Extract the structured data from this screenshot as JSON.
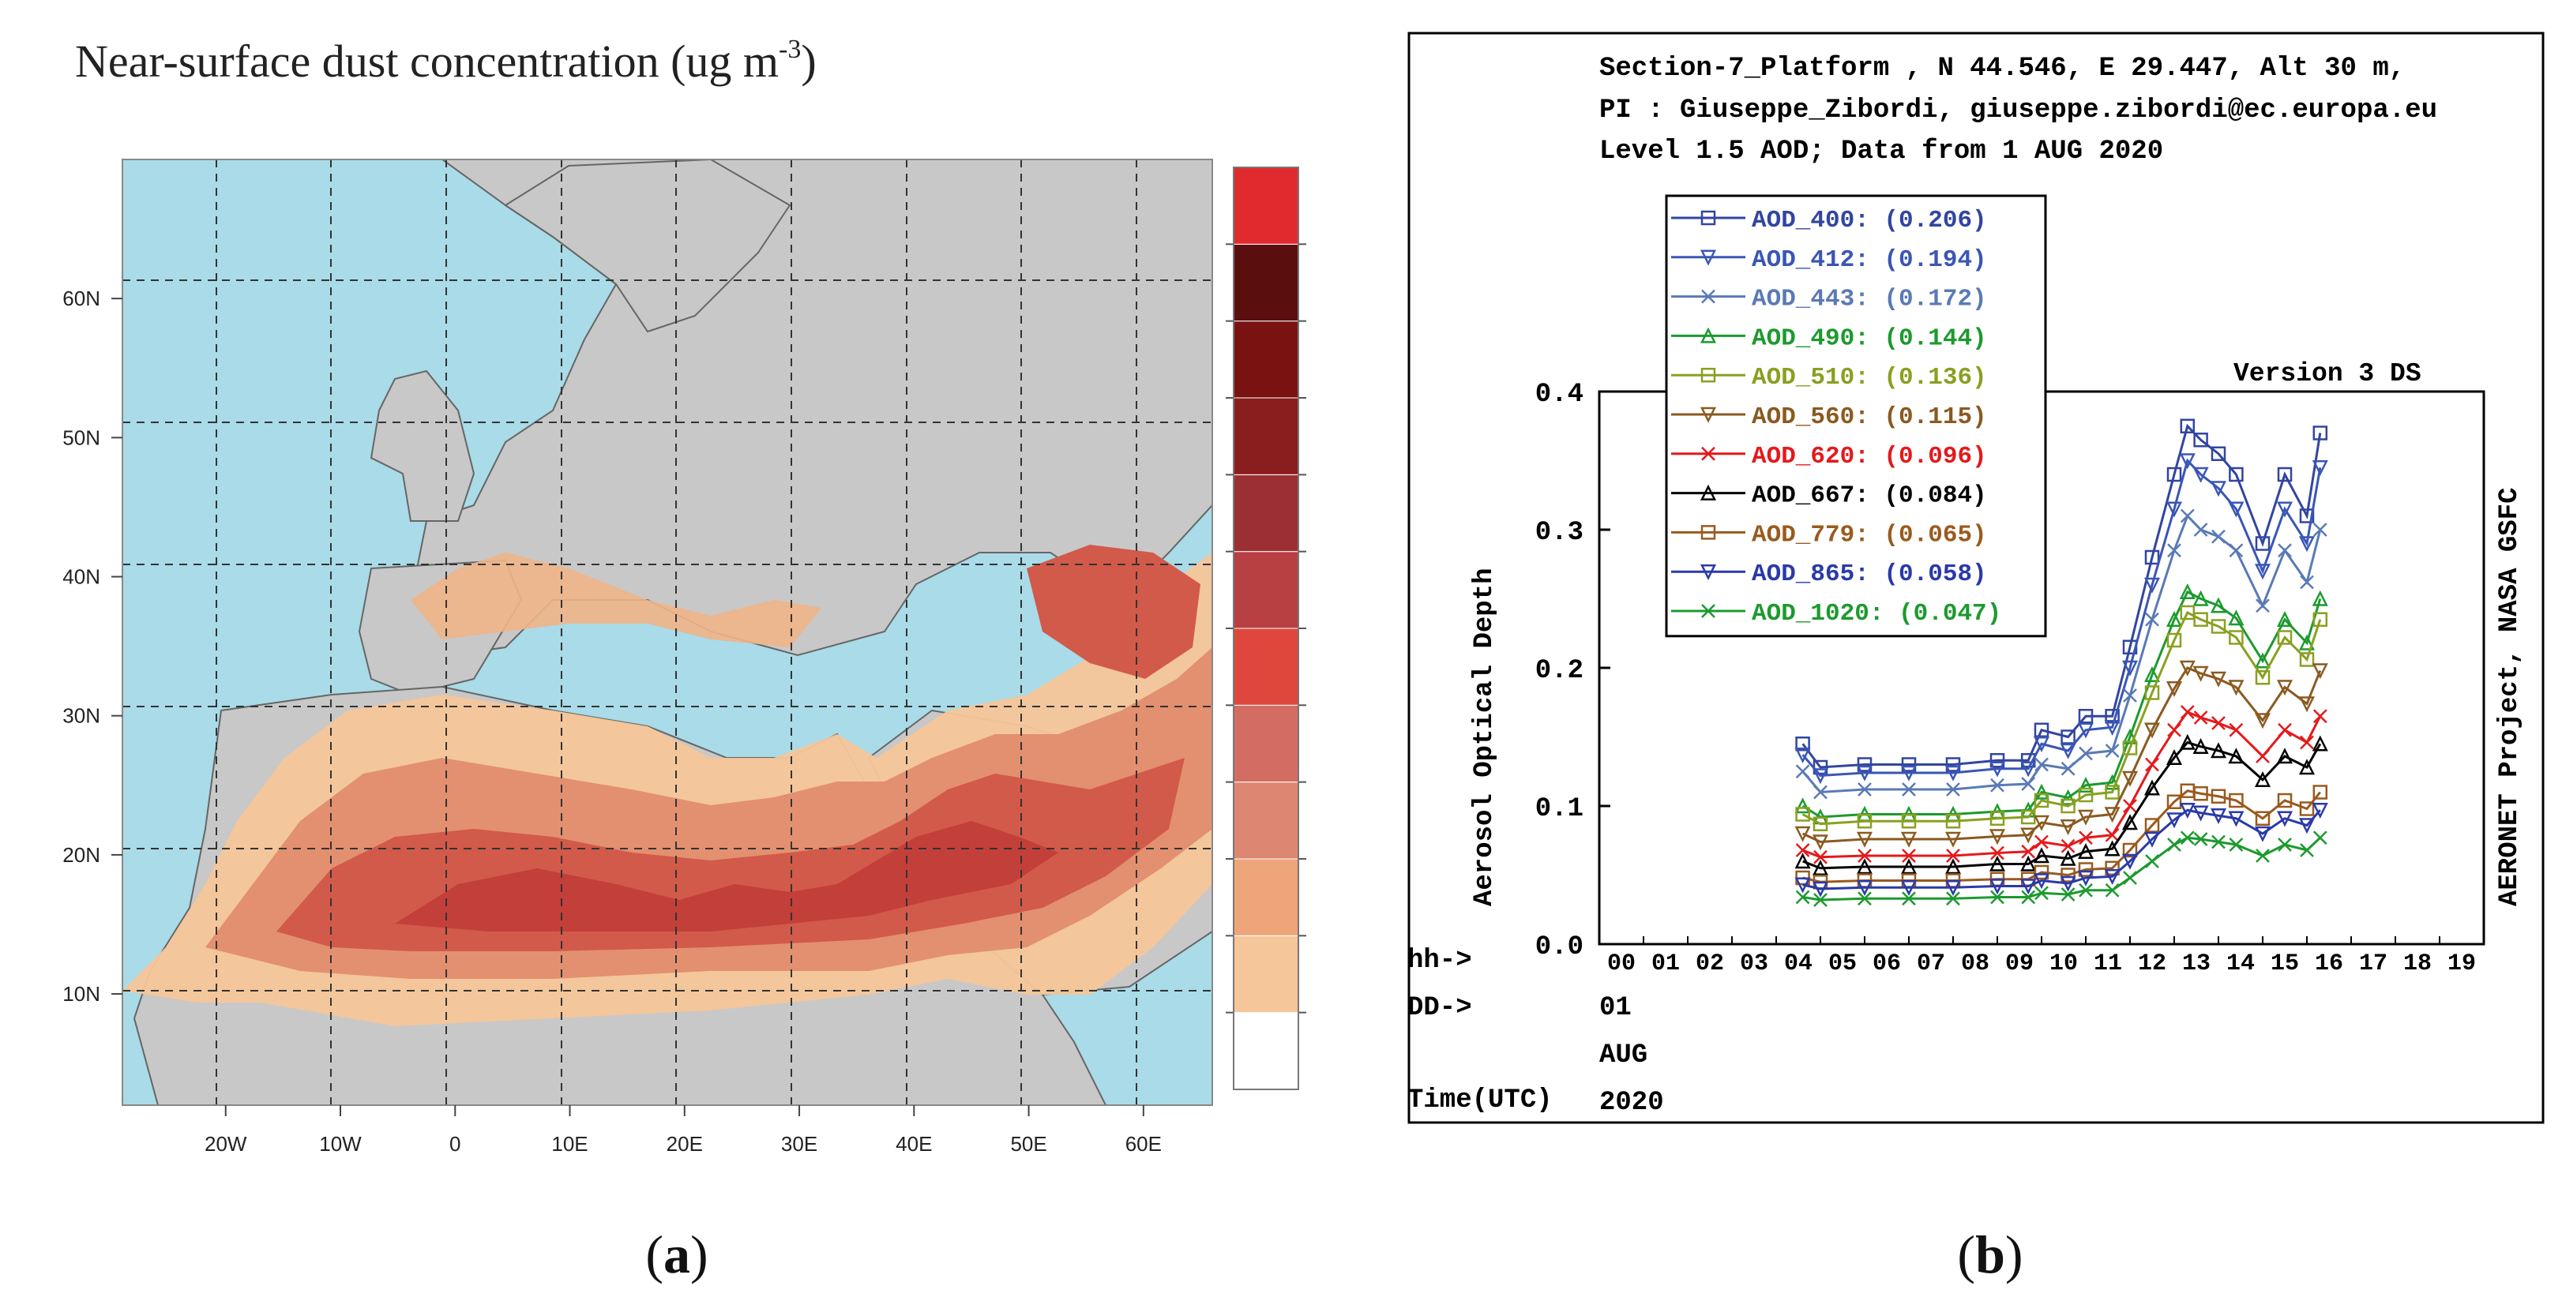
{
  "panel_a": {
    "title": "Near-surface dust concentration (ug m",
    "title_sup": "-3",
    "title_close": ")",
    "caption_letter": "a",
    "colors": {
      "sea": "#a9dbe8",
      "land": "#c8c8c8",
      "border": "#555555",
      "grid": "#444444"
    }
  },
  "panel_b": {
    "header_lines": [
      "Section-7_Platform , N 44.546, E  29.447, Alt 30 m,",
      "PI : Giuseppe_Zibordi, giuseppe.zibordi@ec.europa.eu",
      "Level 1.5 AOD; Data from 1 AUG 2020"
    ],
    "version_label": "Version 3 DS",
    "right_label": "AERONET Project, NASA GSFC",
    "ylabel": "Aerosol Optical Depth",
    "row_labels": [
      "hh->",
      "DD->",
      "Time(UTC)"
    ],
    "dd_value": "01",
    "month": "AUG",
    "year": "2020",
    "caption_letter": "b"
  },
  "chart_data": [
    {
      "type": "heatmap",
      "title": "Near-surface dust concentration (ug m-3)",
      "subtitle": "map of Europe, North Africa and Middle East",
      "x_tick_labels": [
        "20W",
        "10W",
        "0",
        "10E",
        "20E",
        "30E",
        "40E",
        "50E",
        "60E"
      ],
      "y_tick_labels": [
        "10N",
        "20N",
        "30N",
        "40N",
        "50N",
        "60N"
      ],
      "xlim": [
        -29,
        66
      ],
      "ylim": [
        2,
        70
      ],
      "colorbar": {
        "levels": 12,
        "colors": [
          "#ffffff",
          "#f5c699",
          "#eea57a",
          "#dd8672",
          "#d36d61",
          "#e0473c",
          "#b83f42",
          "#9c2f33",
          "#8a1e1e",
          "#7a1212",
          "#5a0e0e",
          "#e12a2d"
        ],
        "tick_labels": []
      }
    },
    {
      "type": "line",
      "title": "Section-7_Platform AERONET Level 1.5 AOD",
      "xlabel": "hh-> / DD-> / Time(UTC)",
      "ylabel": "Aerosol Optical Depth",
      "ylim": [
        0,
        0.4
      ],
      "xlim": [
        0,
        20
      ],
      "y_tick_labels": [
        "0.0",
        "0.1",
        "0.2",
        "0.3",
        "0.4"
      ],
      "x_tick_labels": [
        "00",
        "01",
        "02",
        "03",
        "04",
        "05",
        "06",
        "07",
        "08",
        "09",
        "10",
        "11",
        "12",
        "13",
        "14",
        "15",
        "16",
        "17",
        "18",
        "19"
      ],
      "x": [
        4.6,
        5.0,
        6.0,
        7.0,
        8.0,
        9.0,
        9.7,
        10.0,
        10.6,
        11.0,
        11.6,
        12.0,
        12.5,
        13.0,
        13.3,
        13.6,
        14.0,
        14.4,
        15.0,
        15.5,
        16.0,
        16.3
      ],
      "series": [
        {
          "name": "AOD_400",
          "mean_label": "(0.206)",
          "color": "#3245a0",
          "marker": "square",
          "values": [
            0.145,
            0.128,
            0.13,
            0.13,
            0.13,
            0.133,
            0.133,
            0.155,
            0.15,
            0.165,
            0.165,
            0.215,
            0.28,
            0.34,
            0.375,
            0.365,
            0.355,
            0.34,
            0.29,
            0.34,
            0.31,
            0.37
          ]
        },
        {
          "name": "AOD_412",
          "mean_label": "(0.194)",
          "color": "#3a56b5",
          "marker": "triangle-down",
          "values": [
            0.137,
            0.122,
            0.124,
            0.124,
            0.124,
            0.127,
            0.127,
            0.145,
            0.14,
            0.155,
            0.157,
            0.2,
            0.26,
            0.315,
            0.35,
            0.34,
            0.33,
            0.315,
            0.27,
            0.315,
            0.29,
            0.345
          ]
        },
        {
          "name": "AOD_443",
          "mean_label": "(0.172)",
          "color": "#5a7ab5",
          "marker": "x",
          "values": [
            0.125,
            0.11,
            0.112,
            0.112,
            0.112,
            0.115,
            0.116,
            0.13,
            0.127,
            0.138,
            0.14,
            0.18,
            0.235,
            0.285,
            0.31,
            0.3,
            0.295,
            0.285,
            0.245,
            0.285,
            0.262,
            0.3
          ]
        },
        {
          "name": "AOD_490",
          "mean_label": "(0.144)",
          "color": "#1c9a2e",
          "marker": "triangle-up",
          "values": [
            0.1,
            0.092,
            0.094,
            0.094,
            0.094,
            0.096,
            0.097,
            0.11,
            0.106,
            0.115,
            0.117,
            0.15,
            0.195,
            0.235,
            0.255,
            0.25,
            0.245,
            0.236,
            0.205,
            0.235,
            0.218,
            0.25
          ]
        },
        {
          "name": "AOD_510",
          "mean_label": "(0.136)",
          "color": "#8aa020",
          "marker": "square",
          "values": [
            0.094,
            0.087,
            0.089,
            0.089,
            0.089,
            0.091,
            0.092,
            0.104,
            0.1,
            0.108,
            0.11,
            0.142,
            0.182,
            0.22,
            0.24,
            0.235,
            0.23,
            0.222,
            0.193,
            0.222,
            0.206,
            0.235
          ]
        },
        {
          "name": "AOD_560",
          "mean_label": "(0.115)",
          "color": "#8a5a20",
          "marker": "triangle-down",
          "values": [
            0.08,
            0.074,
            0.076,
            0.076,
            0.076,
            0.078,
            0.079,
            0.088,
            0.085,
            0.092,
            0.094,
            0.12,
            0.155,
            0.185,
            0.2,
            0.196,
            0.192,
            0.186,
            0.162,
            0.186,
            0.174,
            0.198
          ]
        },
        {
          "name": "AOD_620",
          "mean_label": "(0.096)",
          "color": "#e4191c",
          "marker": "x",
          "values": [
            0.068,
            0.063,
            0.064,
            0.064,
            0.064,
            0.066,
            0.067,
            0.074,
            0.071,
            0.077,
            0.079,
            0.1,
            0.13,
            0.155,
            0.168,
            0.164,
            0.16,
            0.155,
            0.136,
            0.155,
            0.146,
            0.165
          ]
        },
        {
          "name": "AOD_667",
          "mean_label": "(0.084)",
          "color": "#000000",
          "marker": "triangle-up",
          "values": [
            0.06,
            0.055,
            0.056,
            0.056,
            0.056,
            0.058,
            0.058,
            0.064,
            0.062,
            0.067,
            0.069,
            0.088,
            0.113,
            0.135,
            0.146,
            0.143,
            0.14,
            0.136,
            0.119,
            0.136,
            0.128,
            0.145
          ]
        },
        {
          "name": "AOD_779",
          "mean_label": "(0.065)",
          "color": "#9a5a1e",
          "marker": "square",
          "values": [
            0.048,
            0.045,
            0.046,
            0.046,
            0.046,
            0.047,
            0.047,
            0.052,
            0.05,
            0.054,
            0.055,
            0.068,
            0.086,
            0.103,
            0.111,
            0.109,
            0.107,
            0.104,
            0.091,
            0.104,
            0.098,
            0.11
          ]
        },
        {
          "name": "AOD_865",
          "mean_label": "(0.058)",
          "color": "#2a3aa8",
          "marker": "triangle-down",
          "values": [
            0.043,
            0.04,
            0.041,
            0.041,
            0.041,
            0.042,
            0.042,
            0.046,
            0.044,
            0.048,
            0.049,
            0.06,
            0.076,
            0.09,
            0.097,
            0.095,
            0.093,
            0.091,
            0.08,
            0.091,
            0.086,
            0.097
          ]
        },
        {
          "name": "AOD_1020",
          "mean_label": "(0.047)",
          "color": "#1c9a2e",
          "marker": "x",
          "values": [
            0.034,
            0.032,
            0.033,
            0.033,
            0.033,
            0.034,
            0.034,
            0.037,
            0.036,
            0.039,
            0.039,
            0.048,
            0.06,
            0.072,
            0.077,
            0.076,
            0.074,
            0.072,
            0.064,
            0.072,
            0.068,
            0.077
          ]
        }
      ]
    }
  ]
}
